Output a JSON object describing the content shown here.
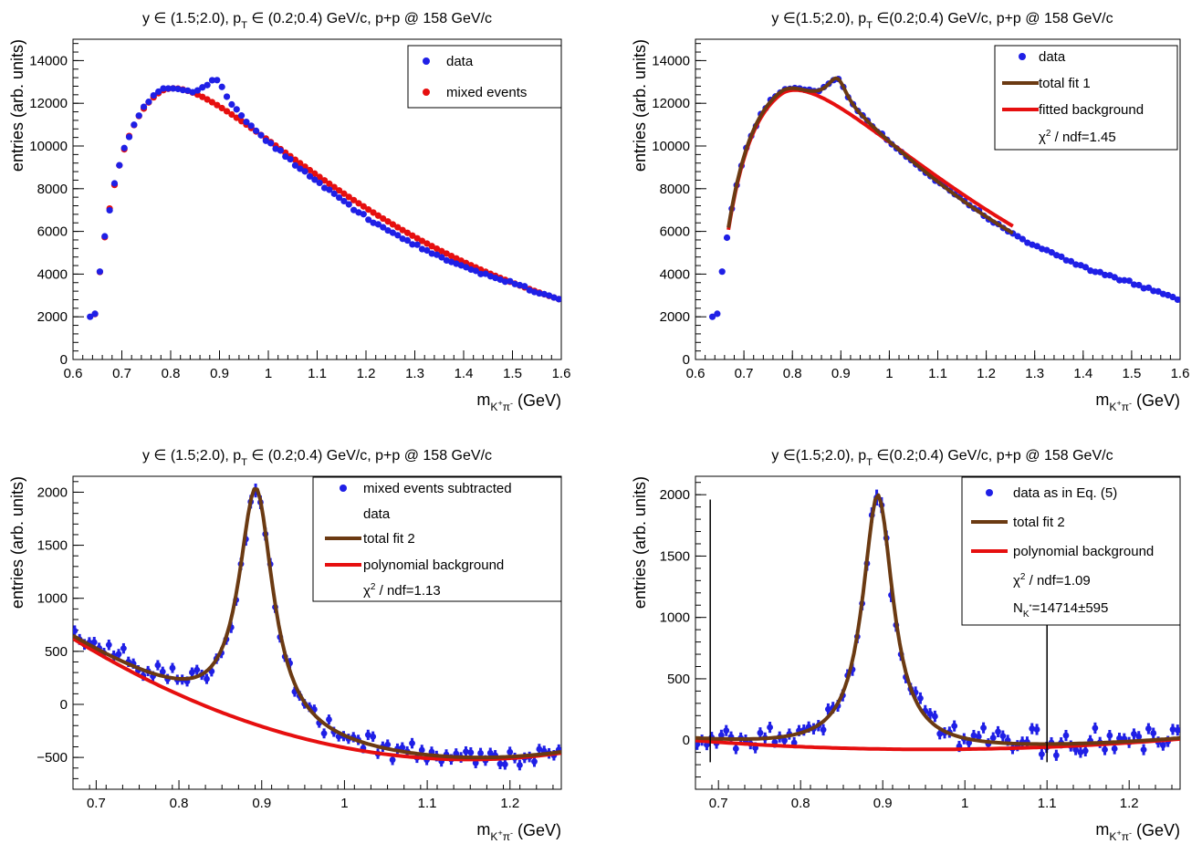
{
  "chart_data": [
    {
      "type": "scatter",
      "title": "y ∈ (1.5;2.0), p_T ∈ (0.2;0.4) GeV/c, p+p @ 158 GeV/c",
      "xlabel": "m_{K+π-} (GeV)",
      "ylabel": "entries (arb. units)",
      "xlim": [
        0.6,
        1.6
      ],
      "ylim": [
        0,
        15000
      ],
      "xticks": [
        "0.6",
        "0.7",
        "0.8",
        "0.9",
        "1",
        "1.1",
        "1.2",
        "1.3",
        "1.4",
        "1.5",
        "1.6"
      ],
      "yticks": [
        "0",
        "2000",
        "4000",
        "6000",
        "8000",
        "10000",
        "12000",
        "14000"
      ],
      "legend": [
        "data",
        "mixed events"
      ],
      "legend_position": "top-right",
      "colors": {
        "data": "#1f1fe6",
        "mixed": "#e60f0f"
      },
      "series": [
        {
          "name": "data",
          "marker": "dot",
          "color": "#1f1fe6",
          "generator": "data_peak"
        },
        {
          "name": "mixed events",
          "marker": "dot",
          "color": "#e60f0f",
          "generator": "mixed"
        }
      ]
    },
    {
      "type": "scatter",
      "title": "y ∈(1.5;2.0), p_T ∈(0.2;0.4) GeV/c, p+p @ 158 GeV/c",
      "xlabel": "m_{K+π-} (GeV)",
      "ylabel": "entries (arb. units)",
      "xlim": [
        0.6,
        1.6
      ],
      "ylim": [
        0,
        15000
      ],
      "xticks": [
        "0.6",
        "0.7",
        "0.8",
        "0.9",
        "1",
        "1.1",
        "1.2",
        "1.3",
        "1.4",
        "1.5",
        "1.6"
      ],
      "yticks": [
        "0",
        "2000",
        "4000",
        "6000",
        "8000",
        "10000",
        "12000",
        "14000"
      ],
      "legend": [
        "data",
        "total fit 1",
        "fitted background",
        "χ² / ndf=1.45"
      ],
      "legend_position": "top-right",
      "series": [
        {
          "name": "data",
          "marker": "dot",
          "color": "#1f1fe6",
          "generator": "data_peak"
        },
        {
          "name": "total fit 1",
          "line": true,
          "color": "#6b3a12",
          "x_range": [
            0.67,
            1.26
          ]
        },
        {
          "name": "fitted background",
          "line": true,
          "color": "#e60f0f",
          "x_range": [
            0.67,
            1.26
          ]
        }
      ]
    },
    {
      "type": "scatter",
      "title": "y ∈ (1.5;2.0), p_T ∈ (0.2;0.4) GeV/c, p+p @ 158 GeV/c",
      "xlabel": "m_{K+π-} (GeV)",
      "ylabel": "entries (arb. units)",
      "xlim": [
        0.672,
        1.262
      ],
      "ylim": [
        -800,
        2150
      ],
      "xticks": [
        "0.7",
        "0.8",
        "0.9",
        "1",
        "1.1",
        "1.2"
      ],
      "yticks": [
        "−500",
        "0",
        "500",
        "1000",
        "1500",
        "2000"
      ],
      "legend": [
        "mixed events subtracted",
        "data",
        "total fit 2",
        "polynomial background",
        "χ² / ndf=1.13"
      ],
      "legend_position": "top-right",
      "series": [
        {
          "name": "mixed events subtracted data",
          "marker": "dot-with-errors",
          "color": "#1f1fe6"
        },
        {
          "name": "total fit 2",
          "line": true,
          "color": "#6b3a12"
        },
        {
          "name": "polynomial background",
          "line": true,
          "color": "#e60f0f"
        }
      ]
    },
    {
      "type": "scatter",
      "title": "y ∈(1.5;2.0), p_T ∈(0.2;0.4) GeV/c, p+p @ 158 GeV/c",
      "xlabel": "m_{K+π-} (GeV)",
      "ylabel": "entries (arb. units)",
      "xlim": [
        0.672,
        1.262
      ],
      "ylim": [
        -400,
        2150
      ],
      "xticks": [
        "0.7",
        "0.8",
        "0.9",
        "1",
        "1.1",
        "1.2"
      ],
      "yticks": [
        "0",
        "500",
        "1000",
        "1500",
        "2000"
      ],
      "legend": [
        "data as in Eq. (5)",
        "total fit 2",
        "polynomial background",
        "χ² / ndf=1.09",
        "N_{K*}=14714±595"
      ],
      "legend_position": "top-right",
      "vertical_markers_x": [
        0.69,
        1.1
      ],
      "series": [
        {
          "name": "data as in Eq. (5)",
          "marker": "dot-with-errors",
          "color": "#1f1fe6"
        },
        {
          "name": "total fit 2",
          "line": true,
          "color": "#6b3a12"
        },
        {
          "name": "polynomial background",
          "line": true,
          "color": "#e60f0f"
        }
      ]
    }
  ]
}
